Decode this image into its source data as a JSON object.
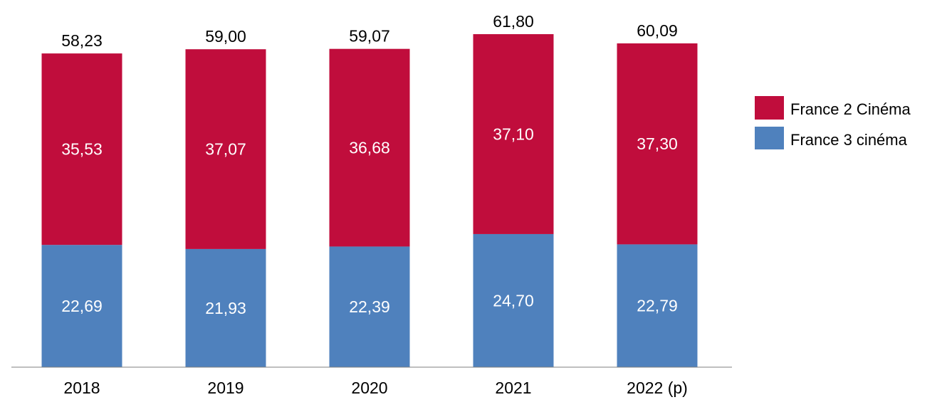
{
  "chart_data": {
    "type": "bar",
    "stacked": true,
    "categories": [
      "2018",
      "2019",
      "2020",
      "2021",
      "2022 (p)"
    ],
    "series": [
      {
        "name": "France 3 cinéma",
        "color": "#4F81BD",
        "values": [
          22.69,
          21.93,
          22.39,
          24.7,
          22.79
        ],
        "labels": [
          "22,69",
          "21,93",
          "22,39",
          "24,70",
          "22,79"
        ]
      },
      {
        "name": "France 2 Cinéma",
        "color": "#C00D3C",
        "values": [
          35.53,
          37.07,
          36.68,
          37.1,
          37.3
        ],
        "labels": [
          "35,53",
          "37,07",
          "36,68",
          "37,10",
          "37,30"
        ]
      }
    ],
    "totals": [
      58.23,
      59.0,
      59.07,
      61.8,
      60.09
    ],
    "total_labels": [
      "58,23",
      "59,00",
      "59,07",
      "61,80",
      "60,09"
    ],
    "ylim": [
      0,
      61.8
    ],
    "grid": false,
    "legend_position": "right",
    "legend": [
      "France 2 Cinéma",
      "France 3 cinéma"
    ]
  }
}
